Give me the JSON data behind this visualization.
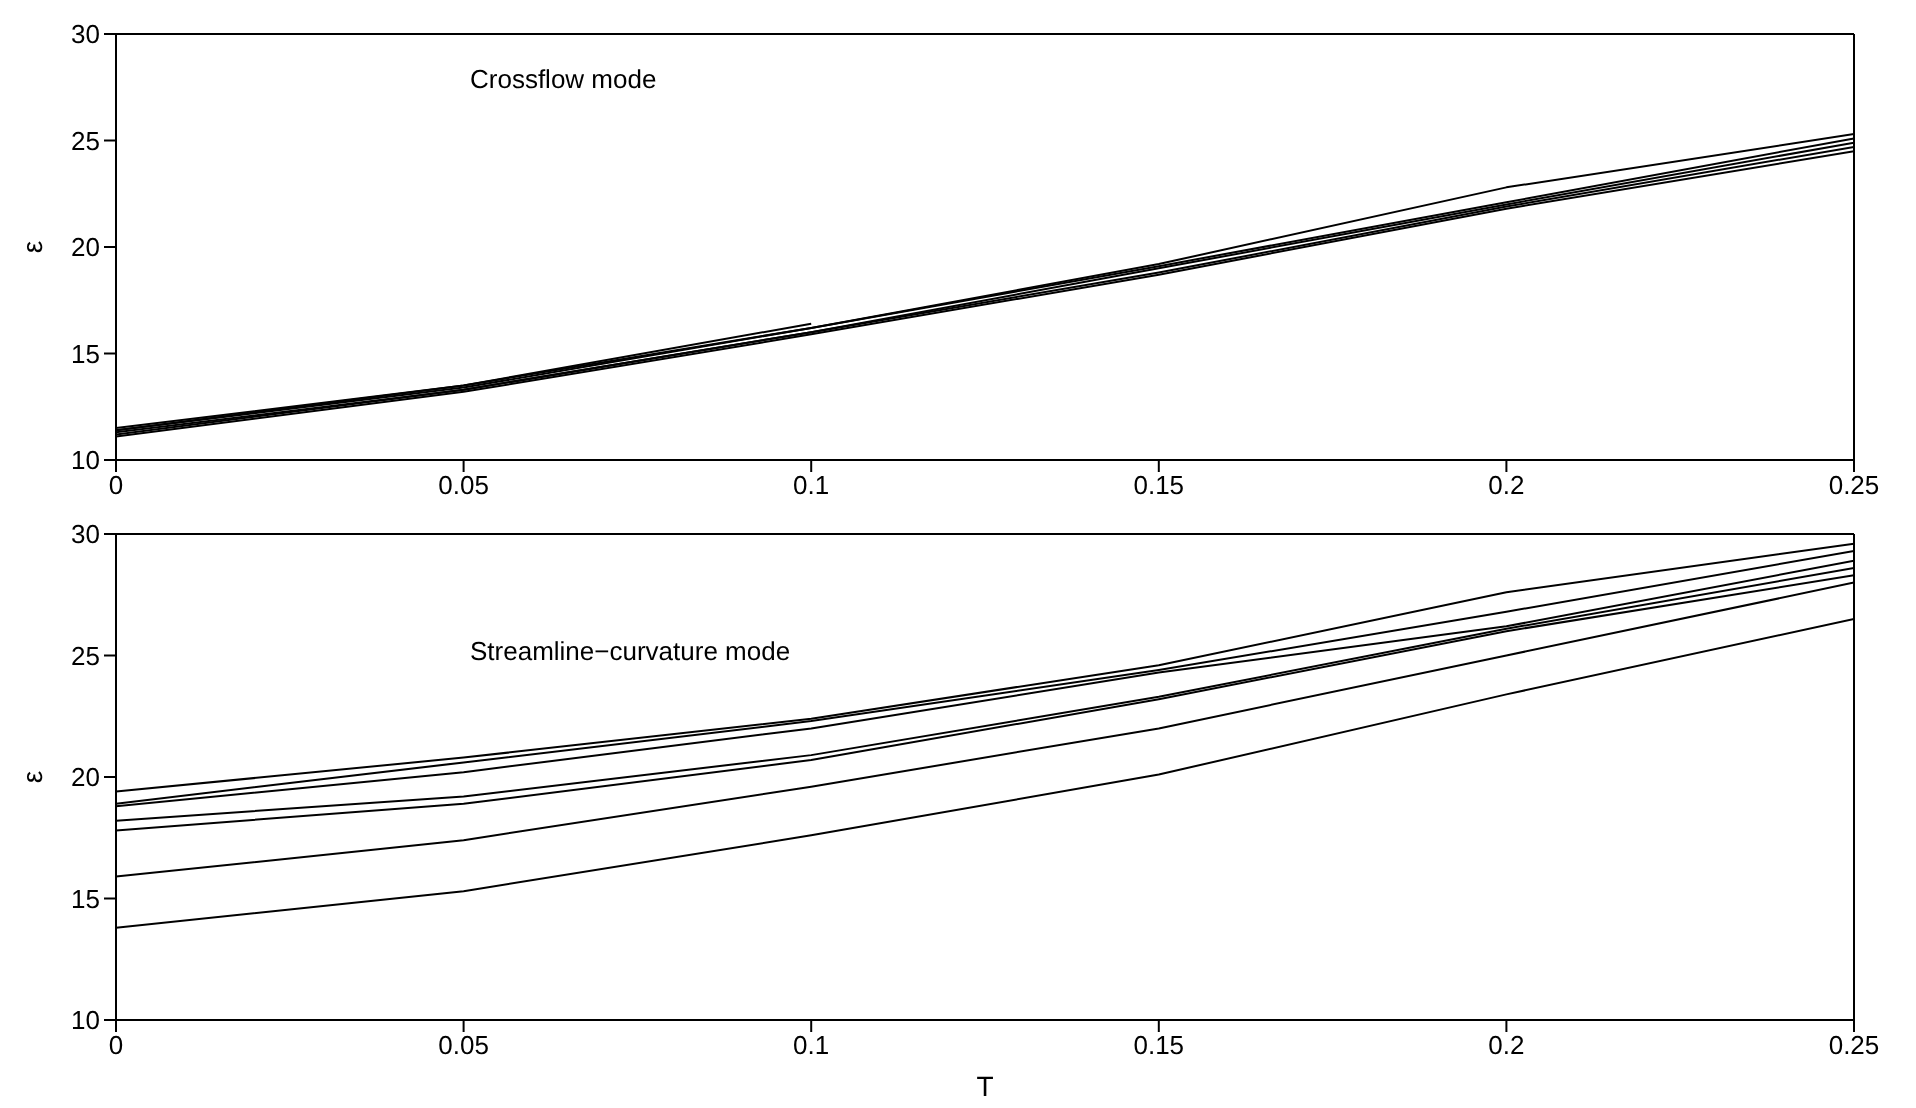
{
  "chart_data": [
    {
      "type": "line",
      "ylabel": "ε",
      "annotations": [
        "Crossflow mode"
      ],
      "x": [
        0,
        0.05,
        0.1,
        0.15,
        0.2,
        0.25
      ],
      "xlim": [
        0,
        0.25
      ],
      "xticks": [
        0,
        0.05,
        0.1,
        0.15,
        0.2,
        0.25
      ],
      "ylim": [
        10,
        30
      ],
      "yticks": [
        10,
        15,
        20,
        25,
        30
      ],
      "grid": false,
      "legend": false,
      "marker": "none",
      "line_style": "solid",
      "series": [
        {
          "color": "#000000",
          "values": [
            11.5,
            13.5,
            16.2,
            19.2,
            22.8,
            25.3
          ]
        },
        {
          "color": "#000000",
          "values": [
            11.4,
            13.4,
            16.2,
            19.1,
            22.1,
            25.1
          ]
        },
        {
          "color": "#000000",
          "values": [
            11.3,
            13.3,
            16.0,
            19.0,
            22.0,
            24.9
          ]
        },
        {
          "color": "#000000",
          "values": [
            11.2,
            13.3,
            16.0,
            18.8,
            21.9,
            24.7
          ]
        },
        {
          "color": "#000000",
          "values": [
            11.1,
            13.2,
            15.9,
            18.7,
            21.8,
            24.5
          ]
        },
        {
          "color": "#000000",
          "values": [
            11.4,
            13.5,
            16.4,
            null,
            null,
            null
          ]
        }
      ]
    },
    {
      "type": "line",
      "xlabel": "T",
      "ylabel": "ε",
      "annotations": [
        "Streamline−curvature mode"
      ],
      "x": [
        0,
        0.05,
        0.1,
        0.15,
        0.2,
        0.25
      ],
      "xlim": [
        0,
        0.25
      ],
      "xticks": [
        0,
        0.05,
        0.1,
        0.15,
        0.2,
        0.25
      ],
      "ylim": [
        10,
        30
      ],
      "yticks": [
        10,
        15,
        20,
        25,
        30
      ],
      "grid": false,
      "legend": false,
      "marker": "none",
      "line_style": "solid",
      "series": [
        {
          "color": "#000000",
          "values": [
            19.4,
            20.8,
            22.4,
            24.6,
            27.6,
            29.6
          ]
        },
        {
          "color": "#000000",
          "values": [
            18.9,
            20.6,
            22.3,
            24.4,
            26.8,
            29.3
          ]
        },
        {
          "color": "#000000",
          "values": [
            18.8,
            20.2,
            22.0,
            24.3,
            26.2,
            28.9
          ]
        },
        {
          "color": "#000000",
          "values": [
            18.2,
            19.2,
            20.9,
            23.3,
            26.1,
            28.6
          ]
        },
        {
          "color": "#000000",
          "values": [
            17.8,
            18.9,
            20.7,
            23.2,
            26.0,
            28.3
          ]
        },
        {
          "color": "#000000",
          "values": [
            15.9,
            17.4,
            19.6,
            22.0,
            25.0,
            28.0
          ]
        },
        {
          "color": "#000000",
          "values": [
            13.8,
            15.3,
            17.6,
            20.1,
            23.4,
            26.5
          ]
        }
      ]
    }
  ]
}
